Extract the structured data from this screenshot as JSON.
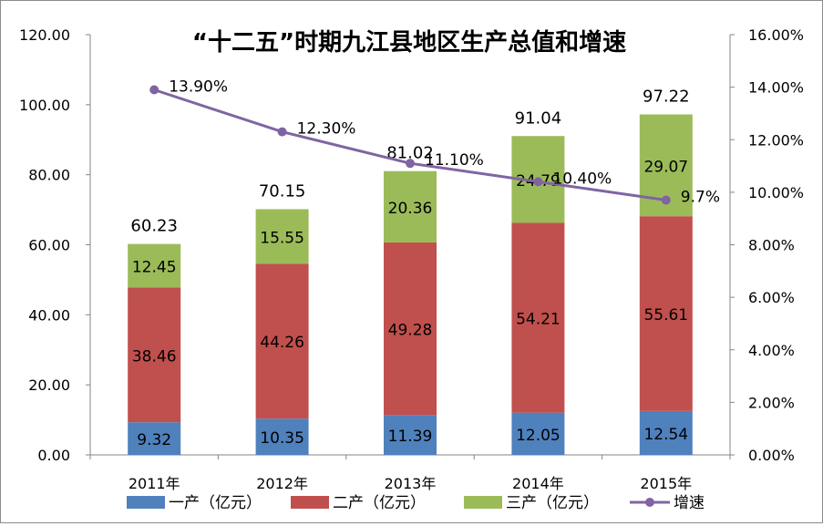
{
  "chart_data": {
    "type": "bar",
    "stacked": true,
    "title": "“十二五”时期九江县地区生产总值和增速",
    "categories": [
      "2011年",
      "2012年",
      "2013年",
      "2014年",
      "2015年"
    ],
    "series": [
      {
        "name": "一产（亿元）",
        "color": "#4f81bd",
        "values": [
          9.32,
          10.35,
          11.39,
          12.05,
          12.54
        ],
        "labels": [
          "9.32",
          "10.35",
          "11.39",
          "12.05",
          "12.54"
        ]
      },
      {
        "name": "二产（亿元）",
        "color": "#c0504d",
        "values": [
          38.46,
          44.26,
          49.28,
          54.21,
          55.61
        ],
        "labels": [
          "38.46",
          "44.26",
          "49.28",
          "54.21",
          "55.61"
        ]
      },
      {
        "name": "三产（亿元）",
        "color": "#9bbb59",
        "values": [
          12.45,
          15.55,
          20.36,
          24.79,
          29.07
        ],
        "labels": [
          "12.45",
          "15.55",
          "20.36",
          "24.79",
          "29.07"
        ]
      }
    ],
    "totals": [
      60.23,
      70.15,
      81.02,
      91.04,
      97.22
    ],
    "total_labels": [
      "60.23",
      "70.15",
      "81.02",
      "91.04",
      "97.22"
    ],
    "line": {
      "name": "增速",
      "color": "#8064a2",
      "values": [
        13.9,
        12.3,
        11.1,
        10.4,
        9.7
      ],
      "labels": [
        "13.90%",
        "12.30%",
        "11.10%",
        "10.40%",
        "9.7%"
      ]
    },
    "ylim": [
      0,
      120
    ],
    "y_ticks": [
      "0.00",
      "20.00",
      "40.00",
      "60.00",
      "80.00",
      "100.00",
      "120.00"
    ],
    "y2lim": [
      0,
      16
    ],
    "y2_ticks": [
      "0.00%",
      "2.00%",
      "4.00%",
      "6.00%",
      "8.00%",
      "10.00%",
      "12.00%",
      "14.00%",
      "16.00%"
    ],
    "legend_position": "bottom",
    "grid": false
  }
}
